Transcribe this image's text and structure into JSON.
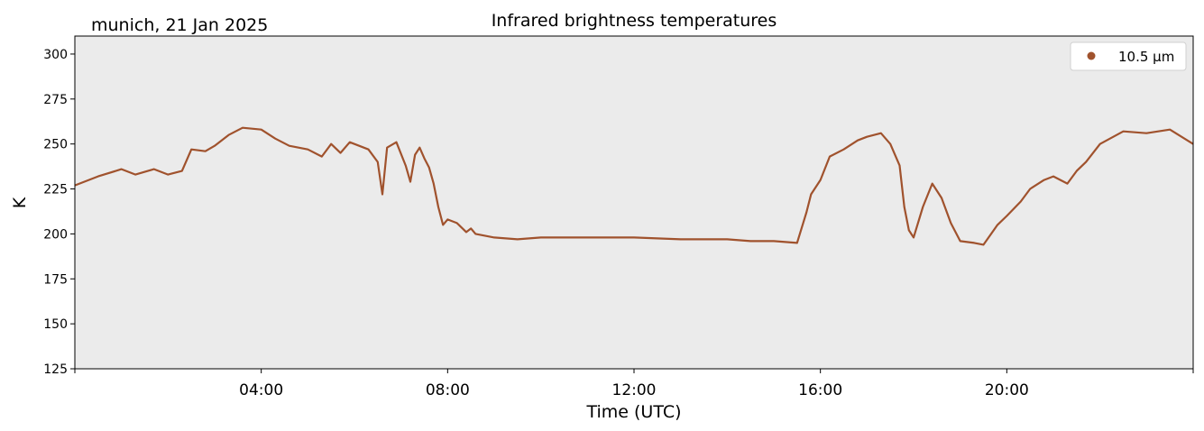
{
  "header": {
    "location_date": "munich, 21 Jan 2025"
  },
  "chart_data": {
    "type": "line",
    "title": "Infrared brightness temperatures",
    "xlabel": "Time (UTC)",
    "ylabel": "K",
    "x_unit": "hours UTC",
    "xlim": [
      0,
      24
    ],
    "ylim": [
      125,
      310
    ],
    "x_tick_values": [
      4,
      8,
      12,
      16,
      20
    ],
    "x_tick_labels": [
      "04:00",
      "08:00",
      "12:00",
      "16:00",
      "20:00"
    ],
    "y_ticks": [
      125,
      150,
      175,
      200,
      225,
      250,
      275,
      300
    ],
    "grid": false,
    "legend_position": "top-right",
    "series": [
      {
        "name": "10.5 µm",
        "color": "#a0522d",
        "x": [
          0.0,
          0.5,
          1.0,
          1.3,
          1.7,
          2.0,
          2.3,
          2.5,
          2.8,
          3.0,
          3.3,
          3.6,
          4.0,
          4.3,
          4.6,
          5.0,
          5.3,
          5.5,
          5.7,
          5.9,
          6.1,
          6.3,
          6.5,
          6.6,
          6.7,
          6.9,
          7.1,
          7.2,
          7.3,
          7.4,
          7.5,
          7.6,
          7.7,
          7.8,
          7.9,
          8.0,
          8.2,
          8.4,
          8.5,
          8.6,
          8.8,
          9.0,
          9.5,
          10.0,
          11.0,
          12.0,
          13.0,
          14.0,
          14.5,
          15.0,
          15.5,
          15.7,
          15.8,
          16.0,
          16.2,
          16.5,
          16.8,
          17.0,
          17.3,
          17.5,
          17.7,
          17.8,
          17.9,
          18.0,
          18.2,
          18.4,
          18.6,
          18.8,
          19.0,
          19.3,
          19.5,
          19.8,
          20.0,
          20.3,
          20.5,
          20.8,
          21.0,
          21.3,
          21.5,
          21.7,
          22.0,
          22.5,
          23.0,
          23.5,
          24.0
        ],
        "y": [
          227,
          232,
          236,
          233,
          236,
          233,
          235,
          247,
          246,
          249,
          255,
          259,
          258,
          253,
          249,
          247,
          243,
          250,
          245,
          251,
          249,
          247,
          240,
          222,
          248,
          251,
          238,
          229,
          244,
          248,
          242,
          237,
          228,
          215,
          205,
          208,
          206,
          201,
          203,
          200,
          199,
          198,
          197,
          198,
          198,
          198,
          197,
          197,
          196,
          196,
          195,
          212,
          222,
          230,
          243,
          247,
          252,
          254,
          256,
          250,
          238,
          215,
          202,
          198,
          215,
          228,
          220,
          206,
          196,
          195,
          194,
          205,
          210,
          218,
          225,
          230,
          232,
          228,
          235,
          240,
          250,
          257,
          256,
          258,
          250
        ]
      }
    ]
  }
}
